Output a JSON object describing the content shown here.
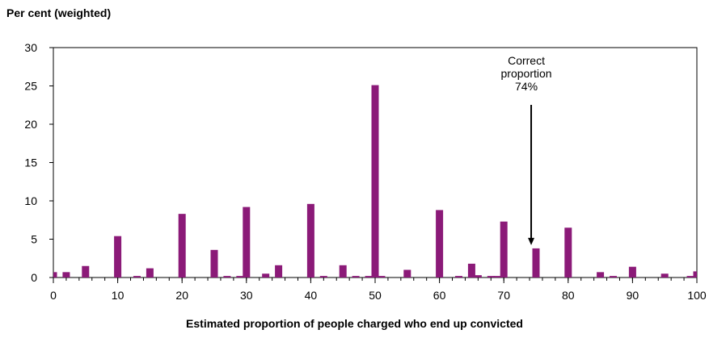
{
  "chart_data": {
    "type": "bar",
    "ylabel": "Per cent (weighted)",
    "xlabel": "Estimated proportion of people charged who end up convicted",
    "xlim": [
      0,
      100
    ],
    "ylim": [
      0,
      30
    ],
    "xticks": [
      0,
      10,
      20,
      30,
      40,
      50,
      60,
      70,
      80,
      90,
      100
    ],
    "yticks": [
      0,
      5,
      10,
      15,
      20,
      25,
      30
    ],
    "grid": false,
    "bar_color": "#8b1a78",
    "series": [
      {
        "x": [
          0,
          2,
          5,
          10,
          13,
          15,
          20,
          25,
          27,
          29,
          30,
          33,
          35,
          40,
          42,
          45,
          47,
          49,
          50,
          51,
          55,
          60,
          63,
          65,
          66,
          68,
          69,
          70,
          75,
          80,
          85,
          87,
          90,
          95,
          99,
          100
        ],
        "values": [
          0.7,
          0.7,
          1.5,
          5.4,
          0.2,
          1.2,
          8.3,
          3.6,
          0.2,
          0.2,
          9.2,
          0.5,
          1.6,
          9.6,
          0.2,
          1.6,
          0.2,
          0.2,
          25.1,
          0.2,
          1.0,
          8.8,
          0.2,
          1.8,
          0.3,
          0.2,
          0.2,
          7.3,
          3.8,
          6.5,
          0.7,
          0.2,
          1.4,
          0.5,
          0.2,
          0.8
        ]
      }
    ],
    "annotations": [
      {
        "lines": [
          "Correct",
          "proportion",
          "74%"
        ],
        "x": 74,
        "arrow_to_y": 3.8
      }
    ]
  }
}
